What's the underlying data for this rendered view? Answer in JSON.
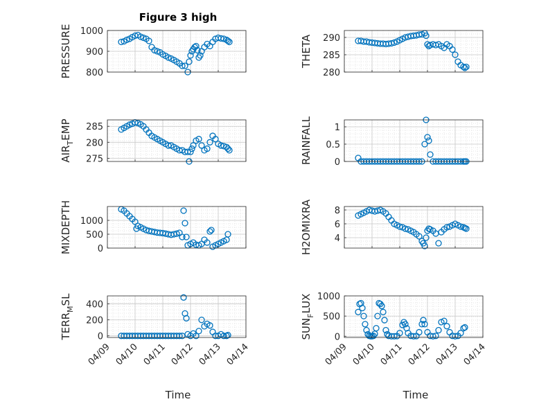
{
  "figure": {
    "title": "Figure 3 high",
    "xlabel": "Time",
    "xticks": [
      "04/09",
      "04/10",
      "04/11",
      "04/12",
      "04/13",
      "04/14"
    ]
  },
  "colors": {
    "marker": "#0072BD",
    "axis": "#262626",
    "grid": "#dcdcdc"
  },
  "chart_data": [
    {
      "type": "scatter",
      "id": "pressure",
      "ylabel": "PRESSURE",
      "ylim": [
        800,
        1000
      ],
      "yticks": [
        800,
        900,
        1000
      ],
      "ytick_labels": [
        "800",
        "900",
        "1000"
      ],
      "xlim": [
        "04/09",
        "04/14"
      ],
      "show_xticklabels": false,
      "grid": true,
      "x": [
        0.5,
        0.6,
        0.7,
        0.8,
        0.9,
        1.0,
        1.1,
        1.2,
        1.3,
        1.4,
        1.5,
        1.6,
        1.7,
        1.8,
        1.9,
        2.0,
        2.1,
        2.2,
        2.3,
        2.4,
        2.5,
        2.6,
        2.7,
        2.8,
        2.9,
        2.95,
        3.0,
        3.05,
        3.1,
        3.15,
        3.2,
        3.25,
        3.3,
        3.35,
        3.4,
        3.5,
        3.6,
        3.7,
        3.8,
        3.9,
        4.0,
        4.1,
        4.2,
        4.3,
        4.35,
        4.4
      ],
      "y": [
        945,
        948,
        955,
        960,
        968,
        975,
        978,
        970,
        965,
        960,
        950,
        920,
        905,
        900,
        895,
        885,
        878,
        870,
        865,
        858,
        850,
        842,
        830,
        830,
        800,
        850,
        880,
        900,
        910,
        920,
        925,
        905,
        870,
        880,
        900,
        920,
        935,
        925,
        945,
        960,
        965,
        962,
        960,
        955,
        950,
        945
      ]
    },
    {
      "type": "scatter",
      "id": "theta",
      "ylabel": "THETA",
      "ylim": [
        280,
        292
      ],
      "yticks": [
        280,
        285,
        290
      ],
      "ytick_labels": [
        "280",
        "285",
        "290"
      ],
      "xlim": [
        "04/09",
        "04/14"
      ],
      "show_xticklabels": false,
      "grid": true,
      "x": [
        0.5,
        0.6,
        0.7,
        0.8,
        0.9,
        1.0,
        1.1,
        1.2,
        1.3,
        1.4,
        1.5,
        1.6,
        1.7,
        1.8,
        1.9,
        2.0,
        2.1,
        2.2,
        2.3,
        2.4,
        2.5,
        2.6,
        2.7,
        2.8,
        2.9,
        2.95,
        3.0,
        3.05,
        3.1,
        3.2,
        3.3,
        3.4,
        3.5,
        3.6,
        3.7,
        3.8,
        3.9,
        4.0,
        4.1,
        4.2,
        4.3,
        4.35,
        4.4
      ],
      "y": [
        289,
        289,
        288.8,
        288.8,
        288.6,
        288.5,
        288.4,
        288.3,
        288.2,
        288.2,
        288.1,
        288.2,
        288.3,
        288.5,
        288.8,
        289.2,
        289.6,
        290,
        290.2,
        290.4,
        290.5,
        290.6,
        290.8,
        290.9,
        291.2,
        290.5,
        288,
        287.5,
        287.8,
        288,
        287.8,
        288,
        287.5,
        287,
        288,
        287.5,
        286.5,
        285,
        283,
        282,
        281.5,
        281.2,
        281.5
      ]
    },
    {
      "type": "scatter",
      "id": "air-temp",
      "ylabel": "AIR_TEMP",
      "ylim": [
        274,
        287
      ],
      "yticks": [
        275,
        280,
        285
      ],
      "ytick_labels": [
        "275",
        "280",
        "285"
      ],
      "xlim": [
        "04/09",
        "04/14"
      ],
      "show_xticklabels": false,
      "grid": true,
      "x": [
        0.5,
        0.6,
        0.7,
        0.8,
        0.9,
        1.0,
        1.1,
        1.2,
        1.3,
        1.4,
        1.5,
        1.6,
        1.7,
        1.8,
        1.9,
        2.0,
        2.1,
        2.2,
        2.3,
        2.4,
        2.5,
        2.6,
        2.7,
        2.8,
        2.9,
        2.95,
        3.0,
        3.05,
        3.1,
        3.2,
        3.3,
        3.4,
        3.5,
        3.6,
        3.7,
        3.8,
        3.9,
        4.0,
        4.1,
        4.2,
        4.3,
        4.35,
        4.4
      ],
      "y": [
        284,
        284.5,
        285,
        285.5,
        285.8,
        286.2,
        286,
        285.6,
        285,
        284,
        283,
        282,
        281.5,
        281,
        280.5,
        280,
        279.5,
        279,
        279,
        278.5,
        278,
        277.5,
        277.5,
        277,
        277,
        274,
        277,
        278,
        279,
        280.5,
        281,
        279,
        277.5,
        278,
        280,
        282,
        281,
        279.5,
        279,
        278.8,
        278.5,
        278,
        277.5
      ]
    },
    {
      "type": "scatter",
      "id": "rainfall",
      "ylabel": "RAINFALL",
      "ylim": [
        0,
        1.2
      ],
      "yticks": [
        0,
        0.5,
        1
      ],
      "ytick_labels": [
        "0",
        "0.5",
        "1"
      ],
      "xlim": [
        "04/09",
        "04/14"
      ],
      "show_xticklabels": false,
      "grid": true,
      "x": [
        0.5,
        0.6,
        0.7,
        0.8,
        0.9,
        1.0,
        1.1,
        1.2,
        1.3,
        1.4,
        1.5,
        1.6,
        1.7,
        1.8,
        1.9,
        2.0,
        2.1,
        2.2,
        2.3,
        2.4,
        2.5,
        2.6,
        2.7,
        2.8,
        2.9,
        2.95,
        3.0,
        3.05,
        3.1,
        3.2,
        3.3,
        3.4,
        3.5,
        3.6,
        3.7,
        3.8,
        3.9,
        4.0,
        4.1,
        4.2,
        4.3,
        4.35,
        4.4
      ],
      "y": [
        0.1,
        0,
        0,
        0,
        0,
        0,
        0,
        0,
        0,
        0,
        0,
        0,
        0,
        0,
        0,
        0,
        0,
        0,
        0,
        0,
        0,
        0,
        0,
        0,
        0.5,
        1.2,
        0.7,
        0.6,
        0.2,
        0,
        0,
        0,
        0,
        0,
        0,
        0,
        0,
        0,
        0,
        0,
        0,
        0,
        0
      ]
    },
    {
      "type": "scatter",
      "id": "mixdepth",
      "ylabel": "MIXDEPTH",
      "ylim": [
        0,
        1500
      ],
      "yticks": [
        0,
        500,
        1000
      ],
      "ytick_labels": [
        "0",
        "500",
        "1000"
      ],
      "xlim": [
        "04/09",
        "04/14"
      ],
      "show_xticklabels": false,
      "grid": true,
      "x": [
        0.5,
        0.6,
        0.7,
        0.8,
        0.9,
        1.0,
        1.05,
        1.1,
        1.2,
        1.3,
        1.4,
        1.5,
        1.6,
        1.7,
        1.8,
        1.9,
        2.0,
        2.1,
        2.2,
        2.3,
        2.4,
        2.5,
        2.6,
        2.7,
        2.75,
        2.8,
        2.85,
        2.9,
        3.0,
        3.1,
        3.2,
        3.3,
        3.4,
        3.5,
        3.6,
        3.7,
        3.75,
        3.8,
        3.9,
        4.0,
        4.1,
        4.2,
        4.3,
        4.35
      ],
      "y": [
        1400,
        1350,
        1250,
        1150,
        1050,
        950,
        700,
        800,
        750,
        700,
        650,
        620,
        600,
        580,
        560,
        550,
        540,
        520,
        500,
        480,
        500,
        520,
        550,
        400,
        1350,
        900,
        400,
        100,
        150,
        200,
        120,
        100,
        150,
        300,
        200,
        600,
        650,
        50,
        100,
        150,
        200,
        250,
        300,
        500
      ]
    },
    {
      "type": "scatter",
      "id": "h2omixra",
      "ylabel": "H2OMIXRA",
      "ylim": [
        2.5,
        8.5
      ],
      "yticks": [
        4,
        6,
        8
      ],
      "ytick_labels": [
        "4",
        "6",
        "8"
      ],
      "xlim": [
        "04/09",
        "04/14"
      ],
      "show_xticklabels": false,
      "grid": true,
      "x": [
        0.5,
        0.6,
        0.7,
        0.8,
        0.9,
        1.0,
        1.1,
        1.2,
        1.3,
        1.4,
        1.5,
        1.6,
        1.7,
        1.8,
        1.9,
        2.0,
        2.1,
        2.2,
        2.3,
        2.4,
        2.5,
        2.6,
        2.7,
        2.8,
        2.85,
        2.9,
        2.95,
        3.0,
        3.05,
        3.1,
        3.2,
        3.3,
        3.4,
        3.5,
        3.6,
        3.7,
        3.8,
        3.9,
        4.0,
        4.1,
        4.2,
        4.3,
        4.35,
        4.4
      ],
      "y": [
        7.2,
        7.4,
        7.6,
        7.8,
        8.0,
        7.9,
        7.8,
        7.9,
        8.0,
        7.8,
        7.5,
        7.0,
        6.5,
        6.0,
        5.8,
        5.6,
        5.5,
        5.3,
        5.2,
        5.0,
        4.8,
        4.5,
        4.2,
        3.5,
        3.2,
        2.8,
        4.0,
        5.0,
        5.3,
        5.2,
        5.0,
        4.6,
        3.2,
        4.8,
        5.2,
        5.5,
        5.6,
        5.8,
        6.0,
        5.8,
        5.6,
        5.5,
        5.4,
        5.3
      ]
    },
    {
      "type": "scatter",
      "id": "terr-msl",
      "ylabel": "TERR_MSL",
      "ylim": [
        -20,
        500
      ],
      "yticks": [
        0,
        200,
        400
      ],
      "ytick_labels": [
        "0",
        "200",
        "400"
      ],
      "xlim": [
        "04/09",
        "04/14"
      ],
      "show_xticklabels": true,
      "grid": true,
      "x": [
        0.5,
        0.6,
        0.7,
        0.8,
        0.9,
        1.0,
        1.1,
        1.2,
        1.3,
        1.4,
        1.5,
        1.6,
        1.7,
        1.8,
        1.9,
        2.0,
        2.1,
        2.2,
        2.3,
        2.4,
        2.5,
        2.6,
        2.7,
        2.75,
        2.8,
        2.85,
        2.9,
        3.0,
        3.1,
        3.2,
        3.3,
        3.4,
        3.5,
        3.6,
        3.7,
        3.8,
        3.9,
        4.0,
        4.1,
        4.2,
        4.3,
        4.35
      ],
      "y": [
        0,
        0,
        0,
        0,
        0,
        0,
        0,
        0,
        0,
        0,
        0,
        0,
        0,
        0,
        0,
        0,
        0,
        0,
        0,
        0,
        0,
        0,
        0,
        480,
        280,
        220,
        20,
        0,
        30,
        0,
        60,
        200,
        120,
        150,
        130,
        50,
        0,
        0,
        20,
        0,
        0,
        10
      ]
    },
    {
      "type": "scatter",
      "id": "sun-flux",
      "ylabel": "SUN_FLUX",
      "ylim": [
        -30,
        1000
      ],
      "yticks": [
        0,
        500,
        1000
      ],
      "ytick_labels": [
        "0",
        "500",
        "1000"
      ],
      "xlim": [
        "04/09",
        "04/14"
      ],
      "show_xticklabels": true,
      "grid": true,
      "x": [
        0.5,
        0.55,
        0.6,
        0.65,
        0.7,
        0.75,
        0.8,
        0.85,
        0.9,
        0.95,
        1.0,
        1.05,
        1.1,
        1.15,
        1.2,
        1.25,
        1.3,
        1.35,
        1.4,
        1.45,
        1.5,
        1.55,
        1.6,
        1.7,
        1.8,
        1.9,
        2.0,
        2.1,
        2.15,
        2.2,
        2.25,
        2.3,
        2.4,
        2.5,
        2.6,
        2.7,
        2.8,
        2.85,
        2.9,
        3.0,
        3.1,
        3.2,
        3.3,
        3.4,
        3.5,
        3.6,
        3.7,
        3.8,
        3.9,
        4.0,
        4.1,
        4.2,
        4.3,
        4.35
      ],
      "y": [
        600,
        800,
        820,
        700,
        500,
        300,
        150,
        50,
        10,
        0,
        0,
        10,
        60,
        200,
        500,
        820,
        800,
        750,
        600,
        400,
        150,
        50,
        10,
        0,
        0,
        5,
        80,
        280,
        350,
        300,
        200,
        80,
        10,
        0,
        5,
        100,
        300,
        400,
        300,
        100,
        10,
        0,
        10,
        150,
        350,
        380,
        250,
        100,
        10,
        0,
        10,
        80,
        200,
        220
      ]
    }
  ]
}
